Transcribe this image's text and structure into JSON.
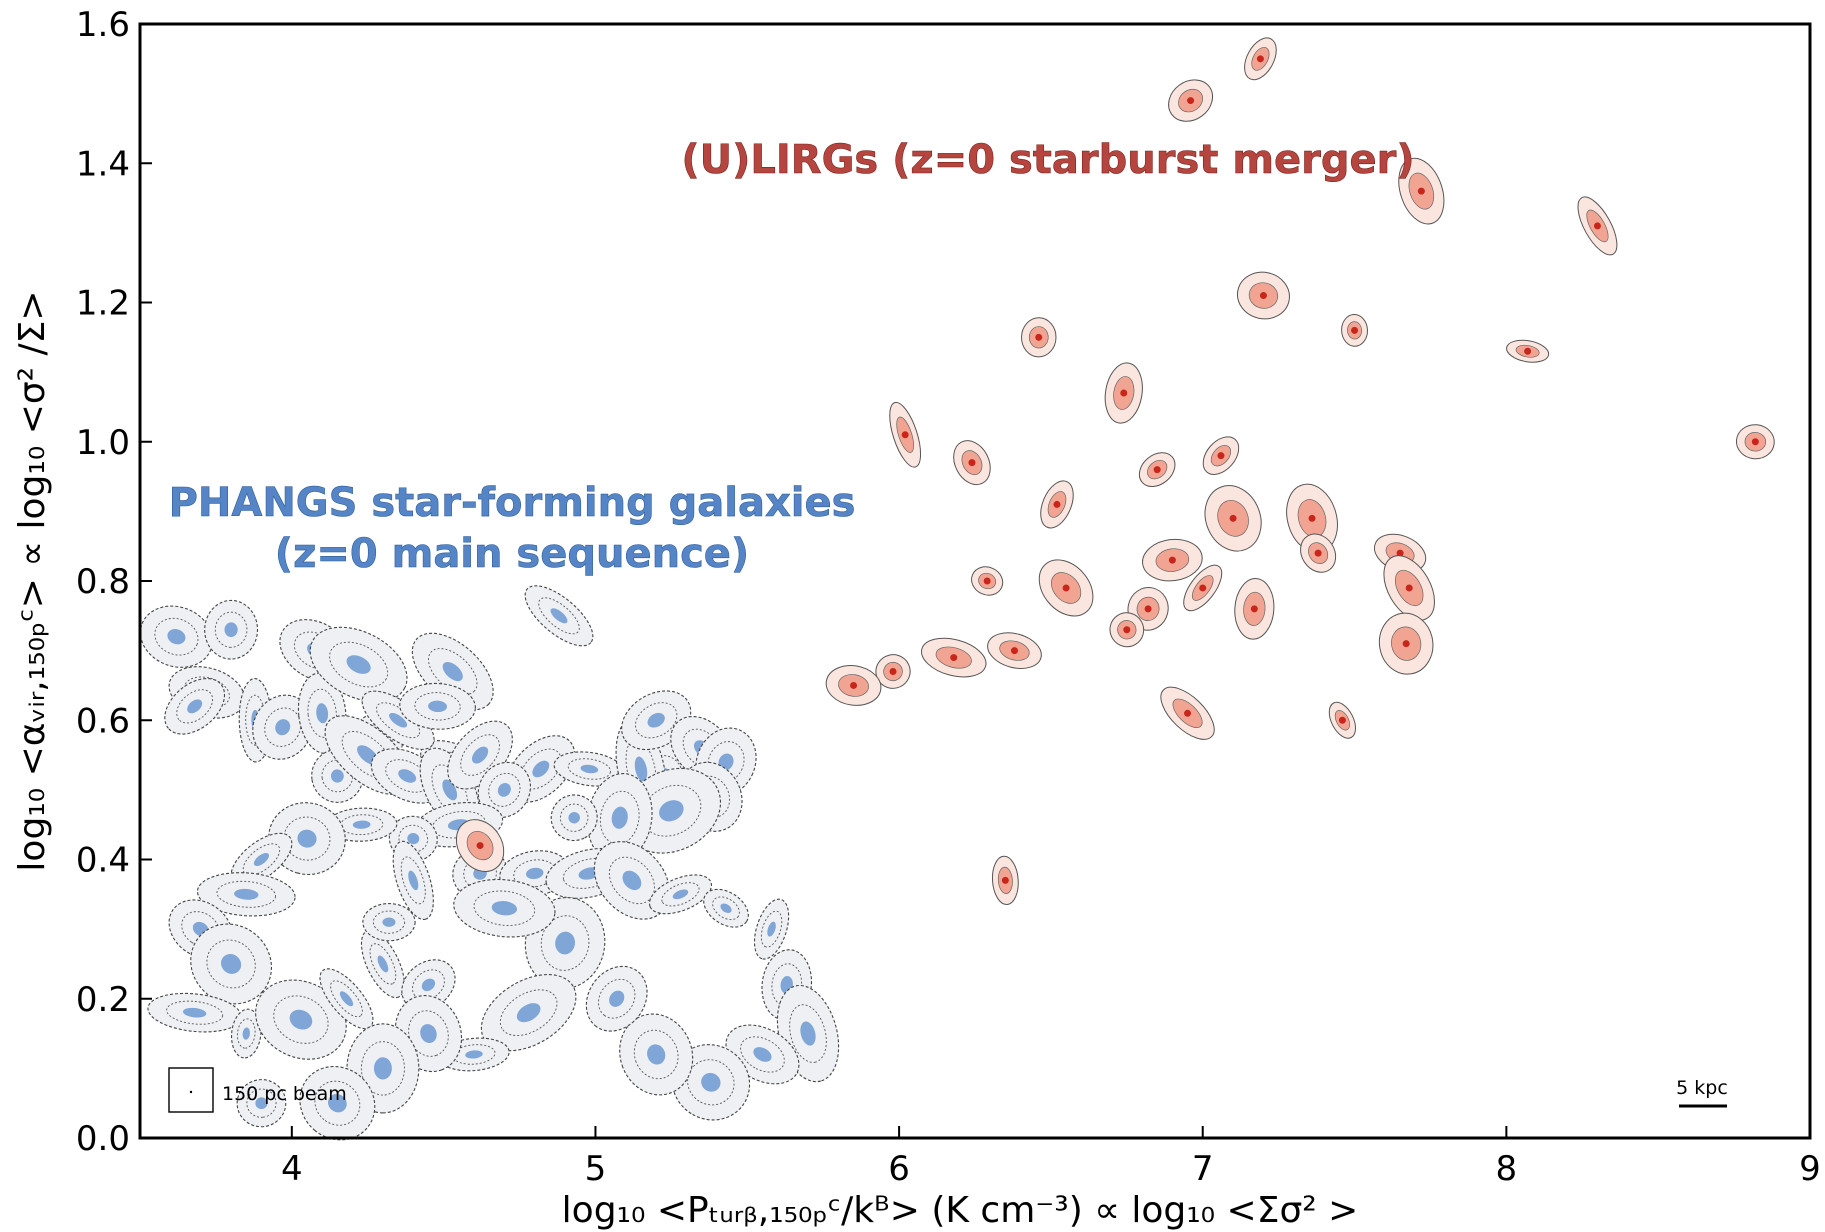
{
  "chart_data": {
    "type": "scatter",
    "title": "",
    "xlabel": "log₁₀ <Pₜᵤᵣᵦ,₁₅₀ₚᶜ/kᴮ> (K cm⁻³) ∝ log₁₀ <Σσ² >",
    "ylabel": "log₁₀ <αᵥᵢᵣ,₁₅₀ₚᶜ> ∝ log₁₀ <σ² /Σ>",
    "xlim": [
      3.5,
      9.0
    ],
    "ylim": [
      0.0,
      1.6
    ],
    "x_ticks": [
      4,
      5,
      6,
      7,
      8,
      9
    ],
    "y_ticks": [
      0.0,
      0.2,
      0.4,
      0.6,
      0.8,
      1.0,
      1.2,
      1.4,
      1.6
    ],
    "x_tick_labels": [
      "4",
      "5",
      "6",
      "7",
      "8",
      "9"
    ],
    "y_tick_labels": [
      "0.0",
      "0.2",
      "0.4",
      "0.6",
      "0.8",
      "1.0",
      "1.2",
      "1.4",
      "1.6"
    ],
    "grid": false,
    "annotations": {
      "ulirgs": "(U)LIRGs (z=0 starburst merger)",
      "phangs_line1": "PHANGS star-forming galaxies",
      "phangs_line2": "(z=0 main sequence)",
      "beam_label": "150 pc beam",
      "scale_label": "5 kpc"
    },
    "series": [
      {
        "name": "PHANGS star-forming galaxies (z=0 main sequence)",
        "color": "#7fa6d6",
        "points": [
          [
            3.62,
            0.72
          ],
          [
            3.8,
            0.73
          ],
          [
            3.72,
            0.64
          ],
          [
            3.68,
            0.62
          ],
          [
            3.88,
            0.6
          ],
          [
            3.97,
            0.59
          ],
          [
            4.08,
            0.7
          ],
          [
            4.1,
            0.61
          ],
          [
            4.15,
            0.52
          ],
          [
            4.28,
            0.57
          ],
          [
            4.55,
            0.53
          ],
          [
            4.25,
            0.55
          ],
          [
            4.38,
            0.52
          ],
          [
            4.52,
            0.5
          ],
          [
            4.62,
            0.55
          ],
          [
            4.53,
            0.67
          ],
          [
            4.82,
            0.53
          ],
          [
            4.88,
            0.75
          ],
          [
            4.98,
            0.53
          ],
          [
            5.22,
            0.52
          ],
          [
            5.15,
            0.53
          ],
          [
            5.2,
            0.6
          ],
          [
            5.35,
            0.56
          ],
          [
            5.43,
            0.54
          ],
          [
            5.38,
            0.49
          ],
          [
            5.25,
            0.47
          ],
          [
            5.08,
            0.46
          ],
          [
            4.93,
            0.46
          ],
          [
            4.7,
            0.5
          ],
          [
            4.55,
            0.45
          ],
          [
            4.4,
            0.43
          ],
          [
            4.23,
            0.45
          ],
          [
            4.05,
            0.43
          ],
          [
            3.9,
            0.4
          ],
          [
            3.85,
            0.35
          ],
          [
            3.7,
            0.3
          ],
          [
            3.8,
            0.25
          ],
          [
            3.68,
            0.18
          ],
          [
            3.85,
            0.15
          ],
          [
            4.03,
            0.17
          ],
          [
            4.18,
            0.2
          ],
          [
            4.3,
            0.25
          ],
          [
            4.45,
            0.22
          ],
          [
            4.32,
            0.31
          ],
          [
            4.4,
            0.37
          ],
          [
            4.62,
            0.38
          ],
          [
            4.8,
            0.38
          ],
          [
            4.98,
            0.38
          ],
          [
            5.12,
            0.37
          ],
          [
            5.28,
            0.35
          ],
          [
            5.43,
            0.33
          ],
          [
            5.58,
            0.3
          ],
          [
            5.63,
            0.22
          ],
          [
            5.7,
            0.15
          ],
          [
            5.55,
            0.12
          ],
          [
            5.38,
            0.08
          ],
          [
            5.2,
            0.12
          ],
          [
            5.07,
            0.2
          ],
          [
            4.9,
            0.28
          ],
          [
            4.78,
            0.18
          ],
          [
            4.6,
            0.12
          ],
          [
            4.45,
            0.15
          ],
          [
            4.3,
            0.1
          ],
          [
            4.15,
            0.05
          ],
          [
            3.9,
            0.05
          ],
          [
            4.22,
            0.68
          ],
          [
            4.35,
            0.6
          ],
          [
            4.48,
            0.62
          ],
          [
            4.7,
            0.33
          ]
        ]
      },
      {
        "name": "(U)LIRGs (z=0 starburst merger)",
        "color": "#e05a48",
        "points": [
          [
            7.19,
            1.55
          ],
          [
            6.96,
            1.49
          ],
          [
            7.72,
            1.36
          ],
          [
            8.3,
            1.31
          ],
          [
            7.2,
            1.21
          ],
          [
            7.5,
            1.16
          ],
          [
            6.46,
            1.15
          ],
          [
            8.07,
            1.13
          ],
          [
            6.74,
            1.07
          ],
          [
            6.02,
            1.01
          ],
          [
            8.82,
            1.0
          ],
          [
            6.24,
            0.97
          ],
          [
            6.85,
            0.96
          ],
          [
            7.06,
            0.98
          ],
          [
            6.52,
            0.91
          ],
          [
            7.1,
            0.89
          ],
          [
            7.36,
            0.89
          ],
          [
            6.29,
            0.8
          ],
          [
            6.9,
            0.83
          ],
          [
            7.38,
            0.84
          ],
          [
            7.65,
            0.84
          ],
          [
            6.55,
            0.79
          ],
          [
            7.0,
            0.79
          ],
          [
            7.68,
            0.79
          ],
          [
            6.82,
            0.76
          ],
          [
            6.75,
            0.73
          ],
          [
            7.17,
            0.76
          ],
          [
            6.38,
            0.7
          ],
          [
            5.98,
            0.67
          ],
          [
            7.67,
            0.71
          ],
          [
            6.18,
            0.69
          ],
          [
            6.95,
            0.61
          ],
          [
            7.46,
            0.6
          ],
          [
            4.62,
            0.42
          ],
          [
            5.85,
            0.65
          ],
          [
            6.35,
            0.37
          ]
        ]
      }
    ]
  }
}
